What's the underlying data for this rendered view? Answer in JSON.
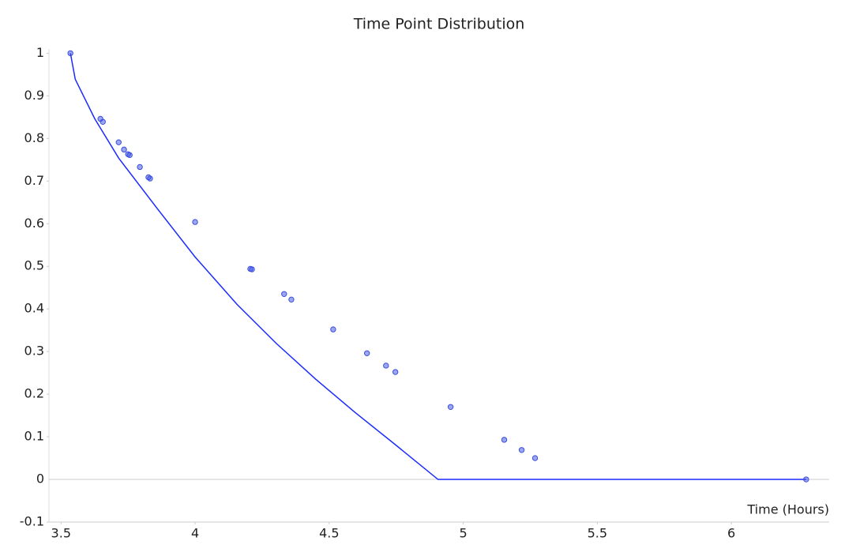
{
  "chart_data": {
    "type": "scatter",
    "title": "Time Point Distribution",
    "x_label": "Time (Hours)",
    "xlim": [
      3.455,
      6.365
    ],
    "ylim": [
      -0.1,
      1.01
    ],
    "xticks": [
      3.5,
      4,
      4.5,
      5,
      5.5,
      6
    ],
    "yticks": [
      -0.1,
      0,
      0.1,
      0.2,
      0.3,
      0.4,
      0.5,
      0.6,
      0.7,
      0.8,
      0.9,
      1
    ],
    "series": [
      {
        "type": "scatter",
        "color": "#3a4ee0",
        "x": [
          3.535,
          3.647,
          3.656,
          3.715,
          3.735,
          3.75,
          3.756,
          3.794,
          3.826,
          3.832,
          4.0,
          4.206,
          4.212,
          4.332,
          4.359,
          4.515,
          4.641,
          4.712,
          4.747,
          4.953,
          5.153,
          5.218,
          5.268,
          6.279
        ],
        "values": [
          1.0,
          0.846,
          0.839,
          0.791,
          0.774,
          0.763,
          0.761,
          0.733,
          0.709,
          0.706,
          0.604,
          0.494,
          0.493,
          0.435,
          0.422,
          0.352,
          0.296,
          0.267,
          0.252,
          0.17,
          0.093,
          0.069,
          0.05,
          0.0
        ]
      },
      {
        "type": "line",
        "color": "#1a2bff",
        "x": [
          3.535,
          3.553,
          3.626,
          3.715,
          3.862,
          4.0,
          4.156,
          4.303,
          4.45,
          4.597,
          4.744,
          4.906,
          6.279
        ],
        "values": [
          1.0,
          0.939,
          0.846,
          0.754,
          0.633,
          0.522,
          0.411,
          0.319,
          0.235,
          0.157,
          0.083,
          0.0,
          0.0
        ]
      }
    ]
  }
}
